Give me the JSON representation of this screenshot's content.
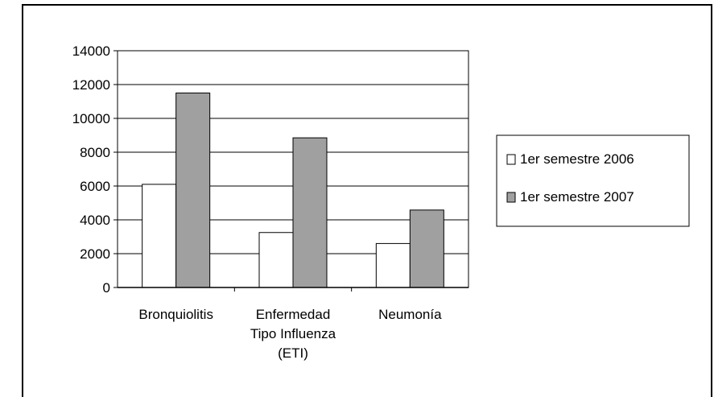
{
  "chart_data": {
    "type": "bar",
    "categories": [
      [
        "Bronquiolitis"
      ],
      [
        "Enfermedad",
        "Tipo Influenza",
        "(ETI)"
      ],
      [
        "Neumonía"
      ]
    ],
    "series": [
      {
        "name": "1er semestre 2006",
        "values": [
          6100,
          3250,
          2600
        ],
        "color": "#ffffff"
      },
      {
        "name": "1er semestre 2007",
        "values": [
          11500,
          8850,
          4580
        ],
        "color": "#a0a0a0"
      }
    ],
    "yticks": [
      0,
      2000,
      4000,
      6000,
      8000,
      10000,
      12000,
      14000
    ],
    "ylim": [
      0,
      14000
    ],
    "grid": true,
    "legend_position": "right"
  }
}
